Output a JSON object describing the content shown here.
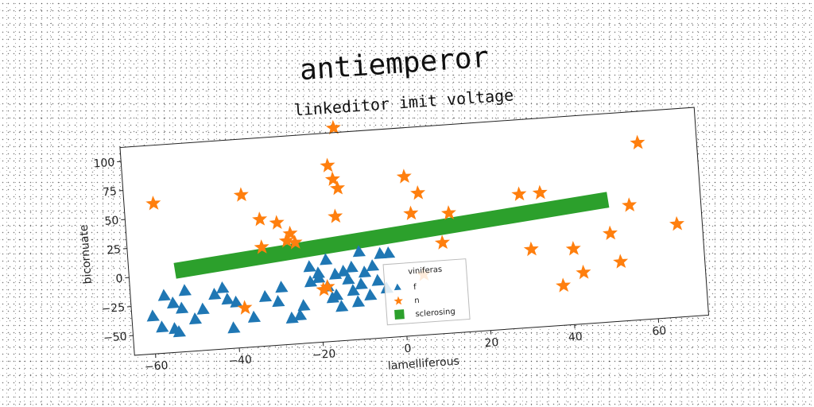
{
  "chart_data": {
    "type": "scatter",
    "title": "antiemperor",
    "subtitle": "linkeditor imit voltage",
    "xlabel": "lamelliferous",
    "ylabel": "bicornuate",
    "xlim": [
      -65,
      72
    ],
    "ylim": [
      -67,
      112
    ],
    "xticks": [
      -60,
      -40,
      -20,
      0,
      20,
      40,
      60
    ],
    "yticks": [
      -50,
      -25,
      0,
      25,
      50,
      75,
      100
    ],
    "grid": false,
    "legend": {
      "title": "viniferas",
      "placement": "lower-center"
    },
    "series": [
      {
        "name": "f",
        "marker": "triangle",
        "color": "#1f77b4",
        "points": [
          [
            -60,
            -35
          ],
          [
            -57,
            -18
          ],
          [
            -55,
            -25
          ],
          [
            -53,
            -30
          ],
          [
            -58,
            -45
          ],
          [
            -55,
            -47
          ],
          [
            -54,
            -50
          ],
          [
            -52,
            -15
          ],
          [
            -50,
            -40
          ],
          [
            -48,
            -32
          ],
          [
            -45,
            -20
          ],
          [
            -43,
            -15
          ],
          [
            -42,
            -25
          ],
          [
            -40,
            -28
          ],
          [
            -41,
            -50
          ],
          [
            -36,
            -42
          ],
          [
            -33,
            -25
          ],
          [
            -30,
            -30
          ],
          [
            -29,
            -18
          ],
          [
            -27,
            -45
          ],
          [
            -25,
            -43
          ],
          [
            -24,
            -35
          ],
          [
            -22,
            -15
          ],
          [
            -20,
            -12
          ],
          [
            -18,
            -20
          ],
          [
            -17,
            -30
          ],
          [
            -16,
            -28
          ],
          [
            -15,
            -38
          ],
          [
            -14,
            -8
          ],
          [
            -13,
            -15
          ],
          [
            -12,
            -25
          ],
          [
            -11,
            -35
          ],
          [
            -10,
            -20
          ],
          [
            -9,
            -10
          ],
          [
            -8,
            -30
          ],
          [
            -7,
            -5
          ],
          [
            -6,
            -18
          ],
          [
            -5,
            5
          ],
          [
            -4,
            -25
          ],
          [
            -3,
            5
          ],
          [
            -16,
            -10
          ],
          [
            -12,
            -5
          ],
          [
            -18,
            3
          ],
          [
            -22,
            -2
          ],
          [
            -10,
            8
          ],
          [
            -20,
            -8
          ]
        ]
      },
      {
        "name": "n",
        "marker": "star",
        "color": "#ff7f0e",
        "points": [
          [
            -58,
            62
          ],
          [
            -37,
            64
          ],
          [
            -33,
            42
          ],
          [
            -33,
            18
          ],
          [
            -29,
            38
          ],
          [
            -27,
            22
          ],
          [
            -26,
            28
          ],
          [
            -25,
            20
          ],
          [
            -14,
            116
          ],
          [
            -16,
            84
          ],
          [
            -15,
            72
          ],
          [
            -14,
            64
          ],
          [
            -15,
            40
          ],
          [
            -38,
            -33
          ],
          [
            -19,
            -22
          ],
          [
            -18,
            -20
          ],
          [
            2,
            70
          ],
          [
            5,
            55
          ],
          [
            3,
            38
          ],
          [
            12,
            36
          ],
          [
            10,
            11
          ],
          [
            29,
            48
          ],
          [
            34,
            48
          ],
          [
            31,
            0
          ],
          [
            38,
            -33
          ],
          [
            41,
            -2
          ],
          [
            43,
            -23
          ],
          [
            50,
            9
          ],
          [
            52,
            -16
          ],
          [
            55,
            32
          ],
          [
            58,
            85
          ],
          [
            66,
            13
          ],
          [
            5,
            -15
          ]
        ]
      },
      {
        "name": "sclerosing",
        "marker": "square",
        "color": "#2ca02c",
        "line": {
          "from": [
            -54,
            3
          ],
          "to": [
            50,
            38
          ]
        }
      }
    ]
  }
}
